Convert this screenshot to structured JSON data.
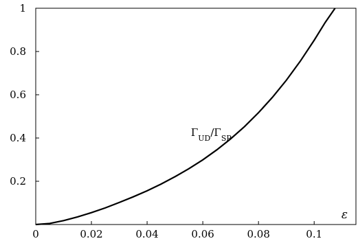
{
  "chart_data": {
    "type": "line",
    "xlabel": "ε",
    "ylabel": "",
    "xlim": [
      0,
      0.115
    ],
    "ylim": [
      0,
      1
    ],
    "x_ticks": [
      "0",
      "0.02",
      "0.04",
      "0.06",
      "0.08",
      "0.1"
    ],
    "x_tick_values": [
      0,
      0.02,
      0.04,
      0.06,
      0.08,
      0.1
    ],
    "y_ticks": [
      "0.2",
      "0.4",
      "0.6",
      "0.8",
      "1"
    ],
    "y_tick_values": [
      0.2,
      0.4,
      0.6,
      0.8,
      1.0
    ],
    "grid": false,
    "frame": true,
    "annotation": {
      "num_main": "Γ",
      "num_sub": "UD",
      "slash": "/",
      "den_main": "Γ",
      "den_sub": "SP",
      "x": 0.063,
      "y": 0.41
    },
    "series": [
      {
        "color": "#000000",
        "x": [
          0,
          0.005,
          0.01,
          0.015,
          0.02,
          0.025,
          0.03,
          0.035,
          0.04,
          0.045,
          0.05,
          0.055,
          0.06,
          0.065,
          0.07,
          0.075,
          0.08,
          0.085,
          0.09,
          0.095,
          0.1,
          0.104,
          0.1075
        ],
        "y": [
          0,
          0.005,
          0.018,
          0.035,
          0.055,
          0.077,
          0.102,
          0.128,
          0.156,
          0.187,
          0.221,
          0.258,
          0.299,
          0.345,
          0.396,
          0.453,
          0.517,
          0.588,
          0.667,
          0.755,
          0.852,
          0.935,
          1.0
        ]
      }
    ]
  }
}
